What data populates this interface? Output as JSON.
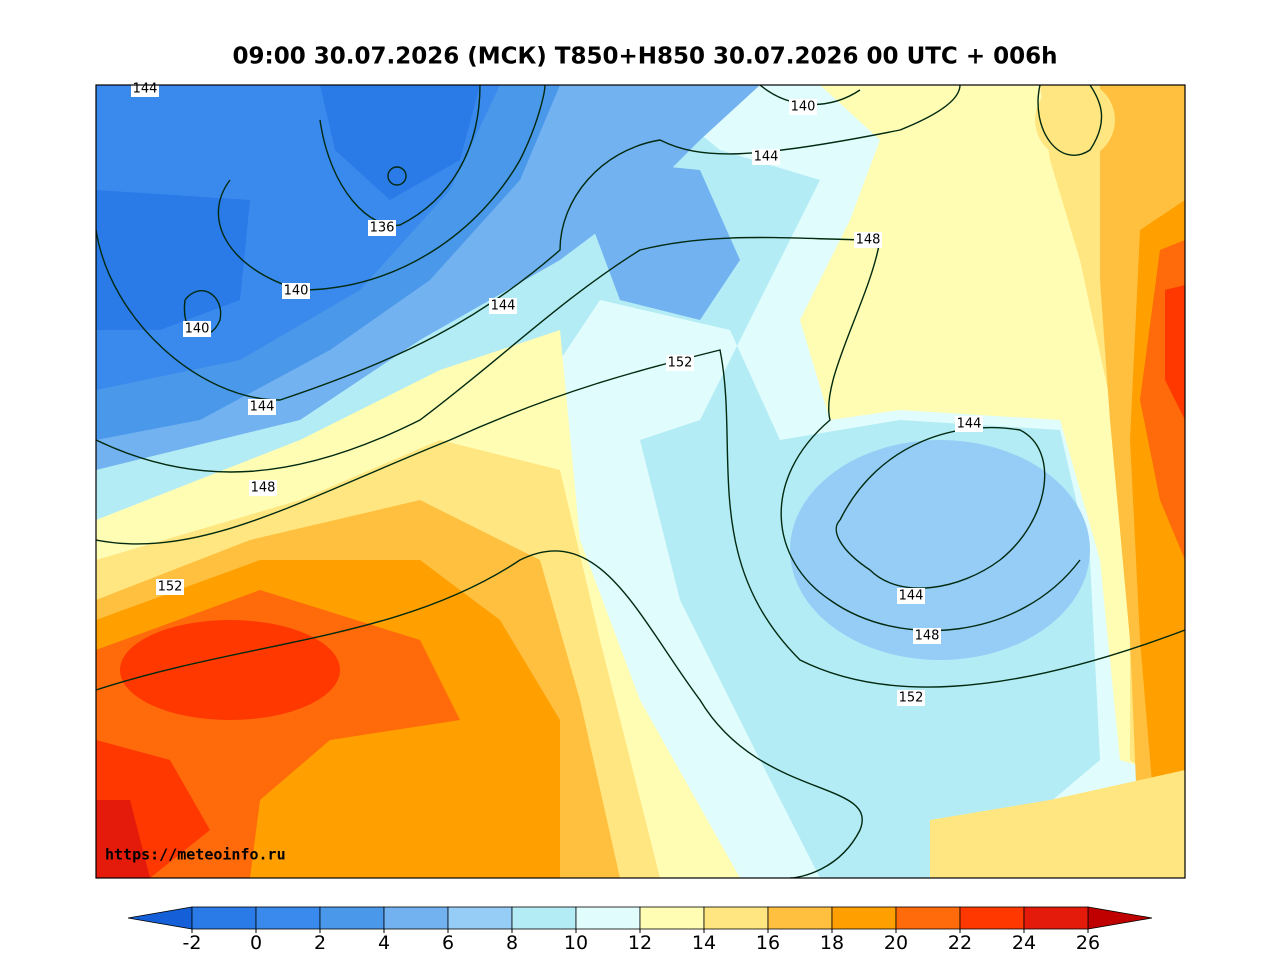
{
  "title": "09:00 30.07.2026 (МСК) T850+H850 30.07.2026 00 UTC + 006h",
  "url": "https://meteoinfo.ru",
  "contour_labels": [
    "144",
    "136",
    "140",
    "140",
    "144",
    "148",
    "152",
    "144",
    "152",
    "140",
    "144",
    "148",
    "144",
    "144",
    "148",
    "152"
  ],
  "colorbar": {
    "ticks": [
      -2,
      0,
      2,
      4,
      6,
      8,
      10,
      12,
      14,
      16,
      18,
      20,
      22,
      24,
      26
    ],
    "colors": [
      "#2a7ae8",
      "#3a8aee",
      "#4a98ea",
      "#72b2f0",
      "#96cdf6",
      "#b4ecf6",
      "#e0fcfc",
      "#fffcb4",
      "#ffe680",
      "#ffc040",
      "#ffa000",
      "#ff6a0a",
      "#ff3800",
      "#e41a0a"
    ],
    "under_color": "#1560d8",
    "over_color": "#c00000"
  }
}
